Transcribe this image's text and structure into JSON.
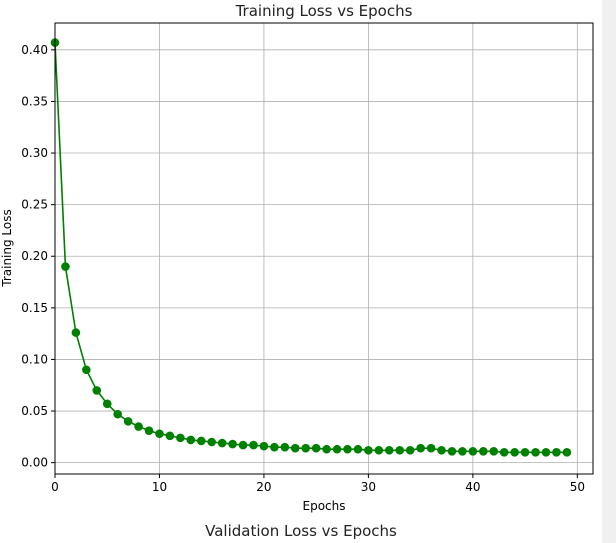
{
  "chart_data": {
    "type": "line",
    "title": "Training Loss vs Epochs",
    "xlabel": "Epochs",
    "ylabel": "Training Loss",
    "xlim": [
      0,
      51.5
    ],
    "ylim": [
      -0.011,
      0.426
    ],
    "xticks": [
      0,
      10,
      20,
      30,
      40,
      50
    ],
    "yticks": [
      0.0,
      0.05,
      0.1,
      0.15,
      0.2,
      0.25,
      0.3,
      0.35,
      0.4
    ],
    "grid": true,
    "series": [
      {
        "color": "#008000",
        "marker": "circle",
        "x": [
          0,
          1,
          2,
          3,
          4,
          5,
          6,
          7,
          8,
          9,
          10,
          11,
          12,
          13,
          14,
          15,
          16,
          17,
          18,
          19,
          20,
          21,
          22,
          23,
          24,
          25,
          26,
          27,
          28,
          29,
          30,
          31,
          32,
          33,
          34,
          35,
          36,
          37,
          38,
          39,
          40,
          41,
          42,
          43,
          44,
          45,
          46,
          47,
          48,
          49
        ],
        "values": [
          0.407,
          0.19,
          0.126,
          0.09,
          0.07,
          0.057,
          0.047,
          0.04,
          0.035,
          0.031,
          0.028,
          0.026,
          0.024,
          0.022,
          0.021,
          0.02,
          0.019,
          0.018,
          0.017,
          0.017,
          0.016,
          0.015,
          0.015,
          0.014,
          0.014,
          0.014,
          0.013,
          0.013,
          0.013,
          0.013,
          0.012,
          0.012,
          0.012,
          0.012,
          0.012,
          0.014,
          0.014,
          0.012,
          0.011,
          0.011,
          0.011,
          0.011,
          0.011,
          0.01,
          0.01,
          0.01,
          0.01,
          0.01,
          0.01,
          0.01
        ]
      }
    ]
  },
  "next_chart": {
    "title": "Validation Loss vs Epochs"
  },
  "colors": {
    "line": "#008000",
    "grid": "#b0b0b0",
    "axis": "#000000",
    "background": "#ffffff"
  }
}
